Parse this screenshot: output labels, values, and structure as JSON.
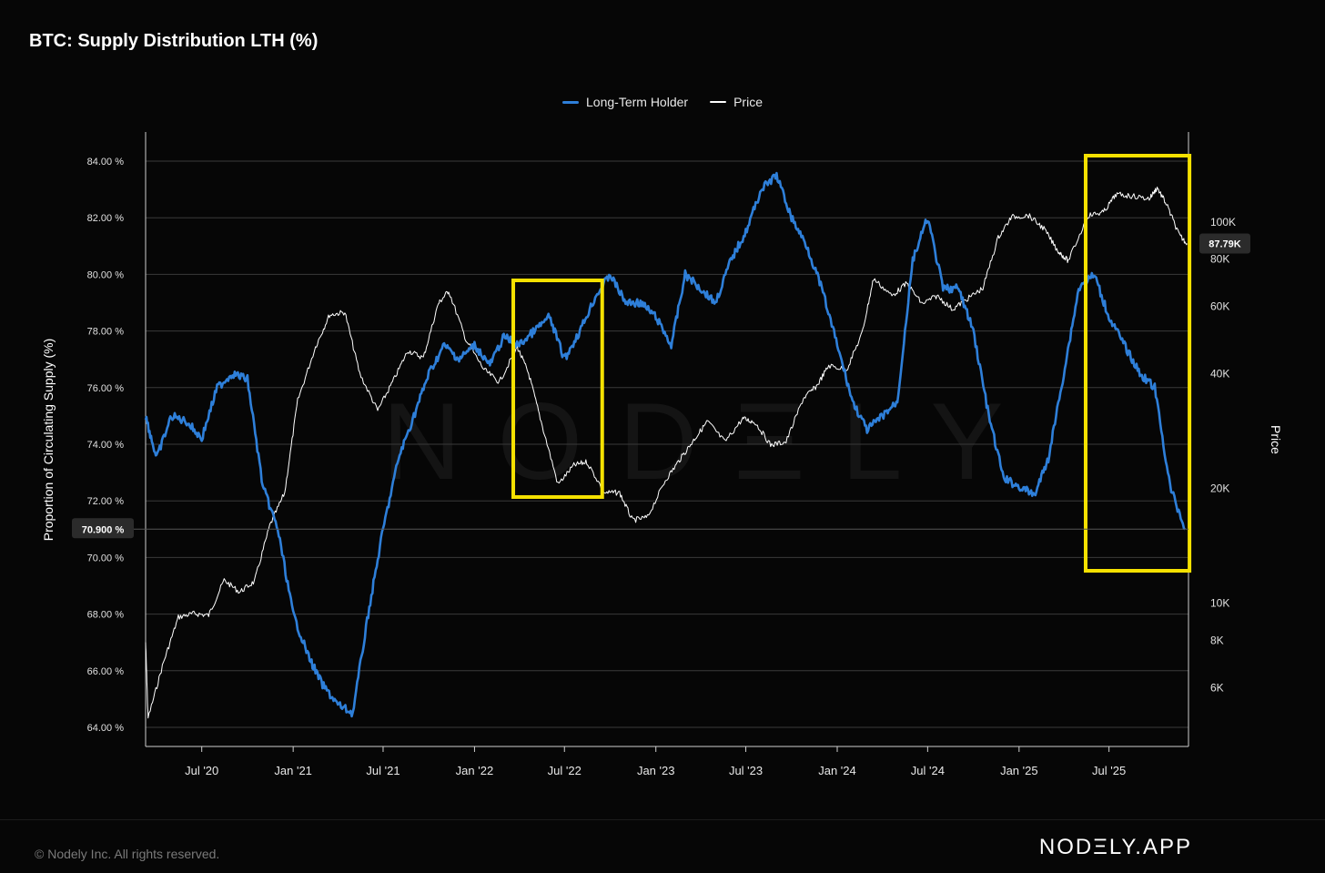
{
  "chart_data": {
    "type": "line",
    "title": "BTC: Supply Distribution LTH (%)",
    "ylabel": "Proportion of Circulating Supply (%)",
    "y2label": "Price",
    "ylim": [
      64,
      84
    ],
    "y2lim": [
      4500,
      150000
    ],
    "y2scale": "log",
    "grid": true,
    "legend_position": "top-center",
    "x_tick_labels": [
      "Jul '20",
      "Jan '21",
      "Jul '21",
      "Jan '22",
      "Jul '22",
      "Jan '23",
      "Jul '23",
      "Jan '24",
      "Jul '24",
      "Jan '25",
      "Jul '25"
    ],
    "y_tick_labels": [
      "84.00 %",
      "82.00 %",
      "80.00 %",
      "78.00 %",
      "76.00 %",
      "74.00 %",
      "72.00 %",
      "70.00 %",
      "68.00 %",
      "66.00 %",
      "64.00 %"
    ],
    "y2_tick_labels": [
      "100K",
      "80K",
      "60K",
      "40K",
      "20K",
      "10K",
      "8K",
      "6K"
    ],
    "current_lth_label": "70.900 %",
    "current_price_label": "87.79K",
    "series": [
      {
        "name": "Long-Term Holder",
        "color": "#2e7fd9",
        "axis": "left",
        "x": [
          "2020-03-10",
          "2020-04-01",
          "2020-05-01",
          "2020-06-01",
          "2020-07-01",
          "2020-08-01",
          "2020-09-01",
          "2020-10-01",
          "2020-11-01",
          "2020-12-01",
          "2021-01-01",
          "2021-02-01",
          "2021-03-01",
          "2021-04-01",
          "2021-05-01",
          "2021-06-01",
          "2021-07-01",
          "2021-08-01",
          "2021-09-01",
          "2021-10-01",
          "2021-11-01",
          "2021-12-01",
          "2022-01-01",
          "2022-02-01",
          "2022-03-01",
          "2022-04-01",
          "2022-05-01",
          "2022-06-01",
          "2022-07-01",
          "2022-08-01",
          "2022-09-01",
          "2022-10-01",
          "2022-11-01",
          "2022-12-01",
          "2023-01-01",
          "2023-02-01",
          "2023-03-01",
          "2023-04-01",
          "2023-05-01",
          "2023-06-01",
          "2023-07-01",
          "2023-08-01",
          "2023-09-01",
          "2023-10-01",
          "2023-11-01",
          "2023-12-01",
          "2024-01-01",
          "2024-02-01",
          "2024-03-01",
          "2024-04-01",
          "2024-05-01",
          "2024-06-01",
          "2024-07-01",
          "2024-08-01",
          "2024-09-01",
          "2024-10-01",
          "2024-11-01",
          "2024-12-01",
          "2025-01-01",
          "2025-02-01",
          "2025-03-01",
          "2025-04-01",
          "2025-05-01",
          "2025-06-01",
          "2025-07-01",
          "2025-08-01",
          "2025-09-01",
          "2025-10-01",
          "2025-11-01",
          "2025-12-01"
        ],
        "values": [
          75.0,
          73.5,
          75.0,
          74.8,
          74.2,
          76.0,
          76.5,
          76.3,
          72.5,
          71.0,
          68.0,
          66.5,
          65.5,
          64.8,
          64.5,
          68.0,
          71.0,
          73.5,
          75.0,
          76.5,
          77.5,
          77.0,
          77.5,
          76.8,
          77.8,
          77.5,
          78.0,
          78.5,
          77.0,
          78.0,
          79.2,
          80.0,
          79.0,
          79.0,
          78.5,
          77.5,
          80.0,
          79.5,
          79.0,
          80.5,
          81.5,
          83.0,
          83.5,
          82.0,
          81.0,
          79.5,
          77.5,
          75.5,
          74.5,
          75.0,
          75.5,
          80.5,
          82.0,
          79.5,
          79.5,
          78.0,
          75.0,
          72.8,
          72.5,
          72.2,
          73.5,
          76.5,
          79.5,
          80.0,
          78.5,
          77.5,
          76.5,
          76.0,
          72.5,
          71.0
        ]
      },
      {
        "name": "Price",
        "color": "#ffffff",
        "axis": "right",
        "x": [
          "2020-03-10",
          "2020-03-15",
          "2020-04-15",
          "2020-05-15",
          "2020-06-15",
          "2020-07-15",
          "2020-08-15",
          "2020-09-15",
          "2020-10-15",
          "2020-11-15",
          "2020-12-15",
          "2021-01-10",
          "2021-02-15",
          "2021-03-15",
          "2021-04-15",
          "2021-05-15",
          "2021-06-20",
          "2021-07-20",
          "2021-08-20",
          "2021-09-20",
          "2021-10-20",
          "2021-11-10",
          "2021-12-15",
          "2022-01-20",
          "2022-02-20",
          "2022-03-28",
          "2022-04-20",
          "2022-05-15",
          "2022-06-18",
          "2022-07-20",
          "2022-08-15",
          "2022-09-20",
          "2022-10-20",
          "2022-11-15",
          "2022-12-15",
          "2023-01-20",
          "2023-02-20",
          "2023-03-20",
          "2023-04-15",
          "2023-05-20",
          "2023-06-25",
          "2023-07-20",
          "2023-08-20",
          "2023-09-20",
          "2023-10-25",
          "2023-11-20",
          "2023-12-15",
          "2024-01-20",
          "2024-02-20",
          "2024-03-14",
          "2024-04-20",
          "2024-05-20",
          "2024-06-20",
          "2024-07-20",
          "2024-08-20",
          "2024-09-20",
          "2024-10-20",
          "2024-11-20",
          "2024-12-17",
          "2025-01-20",
          "2025-02-20",
          "2025-03-20",
          "2025-04-10",
          "2025-05-20",
          "2025-06-20",
          "2025-07-15",
          "2025-08-15",
          "2025-09-20",
          "2025-10-06",
          "2025-10-25",
          "2025-11-20",
          "2025-12-05"
        ],
        "values": [
          7900,
          5000,
          7000,
          9200,
          9400,
          9300,
          11500,
          10700,
          11400,
          16000,
          19500,
          34000,
          47000,
          57000,
          58000,
          40000,
          32000,
          38000,
          46000,
          44000,
          61000,
          66000,
          49000,
          41000,
          38000,
          47000,
          40000,
          30000,
          20500,
          23000,
          23500,
          19500,
          19500,
          16500,
          16800,
          21000,
          24000,
          27000,
          30000,
          26500,
          30500,
          29800,
          26000,
          26500,
          34500,
          37000,
          42000,
          41000,
          51000,
          71000,
          64000,
          69000,
          61000,
          64000,
          59000,
          63000,
          67000,
          91000,
          103000,
          104000,
          96000,
          84000,
          79000,
          104000,
          106000,
          118000,
          117000,
          115000,
          123000,
          111000,
          92000,
          87790
        ]
      }
    ],
    "annotations": [
      {
        "type": "highlight-box",
        "color": "#f5e100",
        "x_start": "2022-03-20",
        "x_end": "2022-09-15"
      },
      {
        "type": "highlight-box",
        "color": "#f5e100",
        "x_start": "2025-05-15",
        "x_end": "2025-12-10"
      }
    ]
  },
  "footer": {
    "copyright": "© Nodely Inc. All rights reserved.",
    "brand": "NODΞLY.APP"
  },
  "watermark": "NODΞLY"
}
